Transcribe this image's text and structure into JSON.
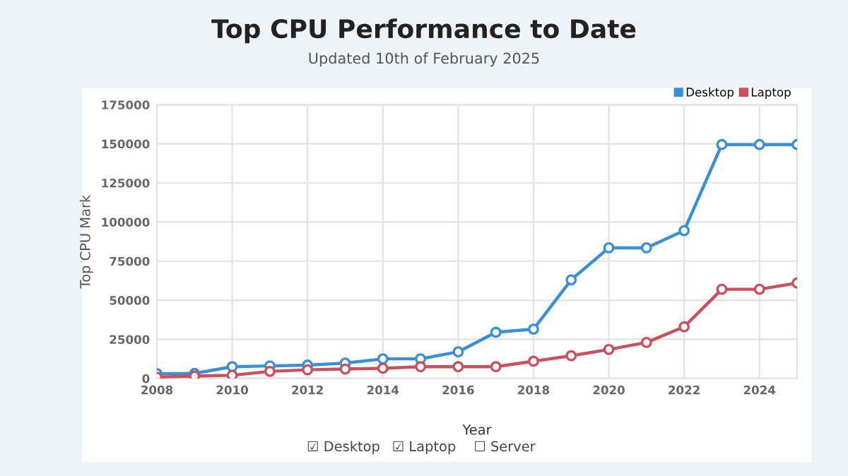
{
  "chart_data": {
    "type": "line",
    "title": "Top CPU Performance to Date",
    "subtitle": "Updated 10th of February 2025",
    "xlabel": "Year",
    "ylabel": "Top CPU Mark",
    "x": [
      2008,
      2009,
      2010,
      2011,
      2012,
      2013,
      2014,
      2015,
      2016,
      2017,
      2018,
      2019,
      2020,
      2021,
      2022,
      2023,
      2024,
      2025
    ],
    "series": [
      {
        "name": "Desktop",
        "color": "#3a8fd6",
        "values": [
          3000,
          3200,
          7500,
          8000,
          8500,
          9800,
          12500,
          12500,
          17000,
          29500,
          31500,
          63000,
          83500,
          83500,
          94500,
          149500,
          149500,
          149500
        ]
      },
      {
        "name": "Laptop",
        "color": "#c9505f",
        "values": [
          800,
          1500,
          2000,
          4500,
          5500,
          6000,
          6500,
          7500,
          7500,
          7500,
          11000,
          14500,
          18500,
          23000,
          33000,
          57000,
          57000,
          61000
        ]
      }
    ],
    "xlim": [
      2008,
      2025
    ],
    "xticks": [
      2008,
      2010,
      2012,
      2014,
      2016,
      2018,
      2020,
      2022,
      2024
    ],
    "ylim": [
      0,
      175000
    ],
    "yticks": [
      0,
      25000,
      50000,
      75000,
      100000,
      125000,
      150000,
      175000
    ],
    "grid": true,
    "legend": "top right",
    "marker": "circle",
    "line_style": "solid",
    "annotations": [
      "☑ Desktop",
      "☑ Laptop",
      "☐ Server"
    ]
  }
}
